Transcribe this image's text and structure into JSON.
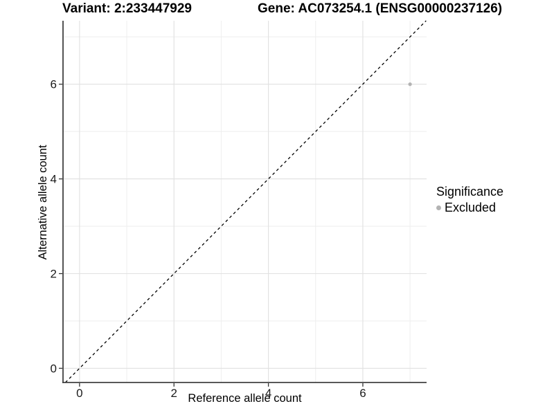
{
  "header": {
    "left_title": "Variant: 2:233447929",
    "right_title": "Gene: AC073254.1 (ENSG00000237126)"
  },
  "chart_data": {
    "type": "scatter",
    "title_left": "Variant: 2:233447929",
    "title_right": "Gene: AC073254.1 (ENSG00000237126)",
    "xlabel": "Reference allele count",
    "ylabel": "Alternative allele count",
    "xlim": [
      -0.35,
      7.35
    ],
    "ylim": [
      -0.3,
      7.34
    ],
    "x_ticks": [
      0,
      2,
      4,
      6
    ],
    "y_ticks": [
      0,
      2,
      4,
      6
    ],
    "x_minor_gridlines": [
      1,
      3,
      5,
      7
    ],
    "y_minor_gridlines": [
      1,
      3,
      5,
      7
    ],
    "grid": "on",
    "points": [
      {
        "x": 7,
        "y": 6,
        "series": "Excluded"
      }
    ],
    "reference_line": {
      "kind": "identity y=x",
      "style": "dashed",
      "color": "#000000"
    },
    "legend": {
      "title": "Significance",
      "position": "right",
      "entries": [
        {
          "label": "Excluded",
          "color": "#b3b3b3"
        }
      ]
    },
    "colors": {
      "point": "#b3b3b3",
      "grid_major": "#e2e2e2",
      "grid_minor": "#eeeeee",
      "axis_line": "#404040",
      "tick_mark": "#333333",
      "tick_label": "#1a1a1a"
    }
  }
}
